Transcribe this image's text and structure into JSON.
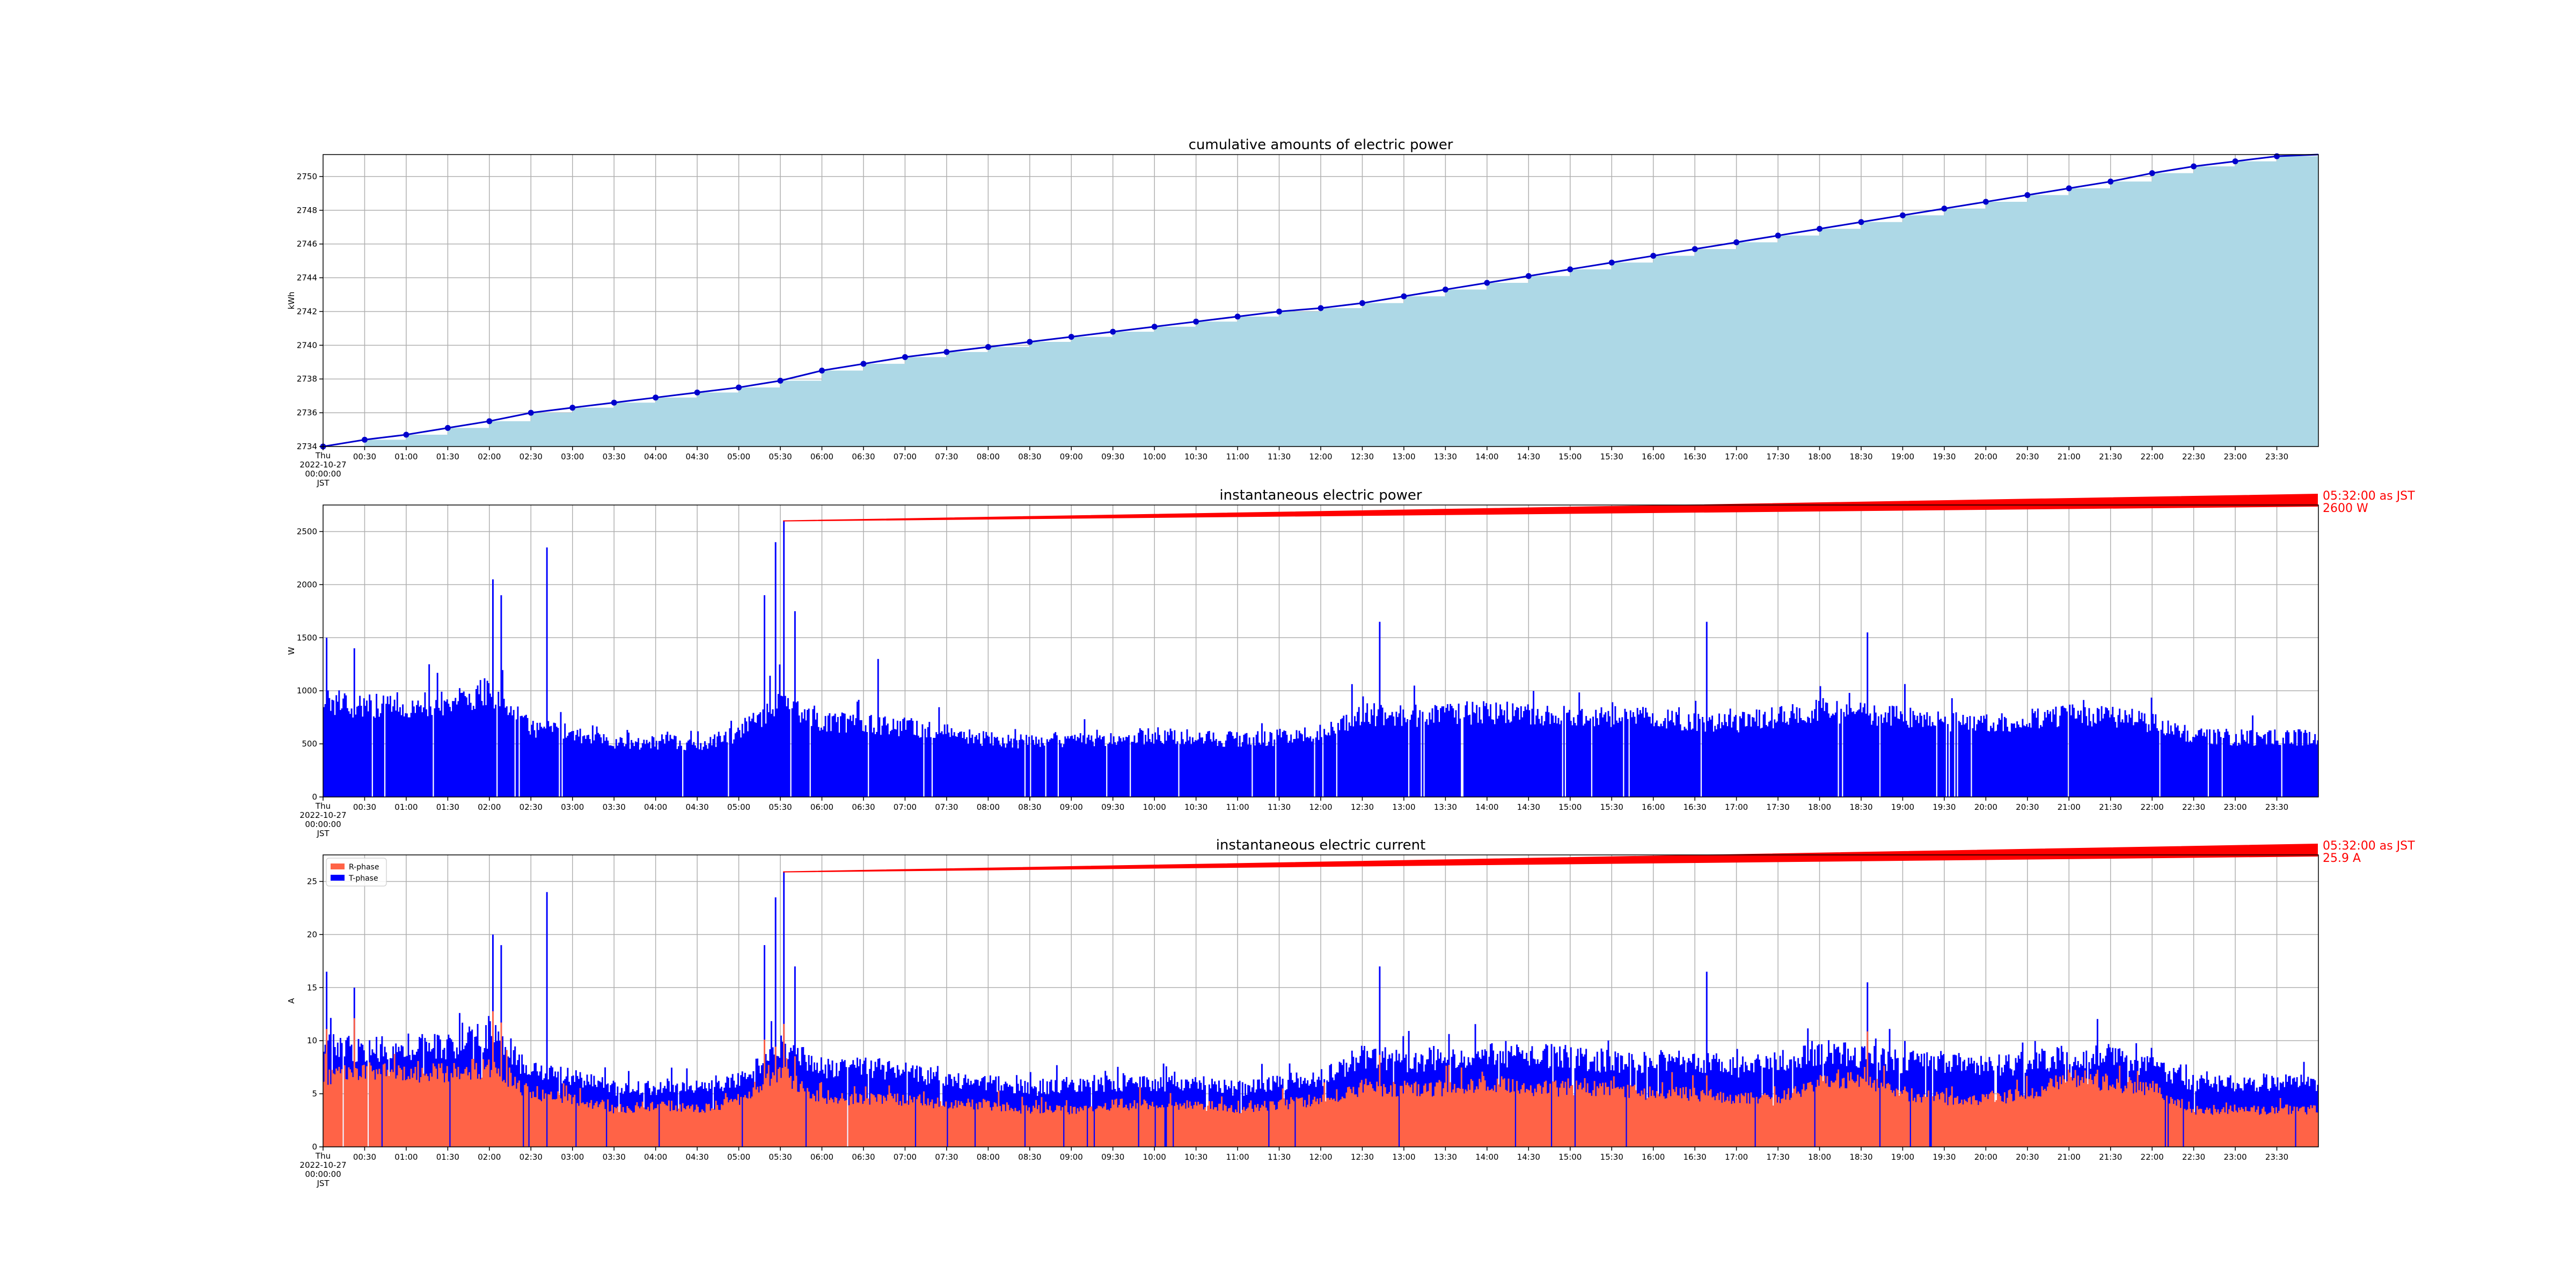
{
  "chart_data": [
    {
      "type": "area",
      "title": "cumulative amounts of electric power",
      "ylabel": "kWh",
      "xlabel": "",
      "ylim": [
        2734,
        2751.3
      ],
      "yticks": [
        2734,
        2736,
        2738,
        2740,
        2742,
        2744,
        2746,
        2748,
        2750
      ],
      "grid": true,
      "x_start_label": [
        "Thu",
        "2022-10-27",
        "00:00:00",
        "JST"
      ],
      "x_tick_labels": [
        "00:30",
        "01:00",
        "01:30",
        "02:00",
        "02:30",
        "03:00",
        "03:30",
        "04:00",
        "04:30",
        "05:00",
        "05:30",
        "06:00",
        "06:30",
        "07:00",
        "07:30",
        "08:00",
        "08:30",
        "09:00",
        "09:30",
        "10:00",
        "10:30",
        "11:00",
        "11:30",
        "12:00",
        "12:30",
        "13:00",
        "13:30",
        "14:00",
        "14:30",
        "15:00",
        "15:30",
        "16:00",
        "16:30",
        "17:00",
        "17:30",
        "18:00",
        "18:30",
        "19:00",
        "19:30",
        "20:00",
        "20:30",
        "21:00",
        "21:30",
        "22:00",
        "22:30",
        "23:00",
        "23:30"
      ],
      "series": [
        {
          "x": [
            "00:00",
            "00:30",
            "01:00",
            "01:30",
            "02:00",
            "02:30",
            "03:00",
            "03:30",
            "04:00",
            "04:30",
            "05:00",
            "05:30",
            "06:00",
            "06:30",
            "07:00",
            "07:30",
            "08:00",
            "08:30",
            "09:00",
            "09:30",
            "10:00",
            "10:30",
            "11:00",
            "11:30",
            "12:00",
            "12:30",
            "13:00",
            "13:30",
            "14:00",
            "14:30",
            "15:00",
            "15:30",
            "16:00",
            "16:30",
            "17:00",
            "17:30",
            "18:00",
            "18:30",
            "19:00",
            "19:30",
            "20:00",
            "20:30",
            "21:00",
            "21:30",
            "22:00",
            "22:30",
            "23:00",
            "23:30"
          ],
          "values": [
            2734.0,
            2734.4,
            2734.7,
            2735.1,
            2735.5,
            2736.0,
            2736.3,
            2736.6,
            2736.9,
            2737.2,
            2737.5,
            2737.9,
            2738.5,
            2738.9,
            2739.3,
            2739.6,
            2739.9,
            2740.2,
            2740.5,
            2740.8,
            2741.1,
            2741.4,
            2741.7,
            2742.0,
            2742.2,
            2742.5,
            2742.9,
            2743.3,
            2743.7,
            2744.1,
            2744.5,
            2744.9,
            2745.3,
            2745.7,
            2746.1,
            2746.5,
            2746.9,
            2747.3,
            2747.7,
            2748.1,
            2748.5,
            2748.9,
            2749.3,
            2749.7,
            2750.2,
            2750.6,
            2750.9,
            2751.2
          ],
          "line_color": "#0000cc",
          "fill_color": "#add8e6"
        }
      ]
    },
    {
      "type": "bar",
      "title": "instantaneous electric power",
      "ylabel": "W",
      "xlabel": "",
      "ylim": [
        0,
        2750
      ],
      "yticks": [
        0,
        500,
        1000,
        1500,
        2000,
        2500
      ],
      "grid": true,
      "x_start_label": [
        "Thu",
        "2022-10-27",
        "00:00:00",
        "JST"
      ],
      "x_tick_labels": [
        "00:30",
        "01:00",
        "01:30",
        "02:00",
        "02:30",
        "03:00",
        "03:30",
        "04:00",
        "04:30",
        "05:00",
        "05:30",
        "06:00",
        "06:30",
        "07:00",
        "07:30",
        "08:00",
        "08:30",
        "09:00",
        "09:30",
        "10:00",
        "10:30",
        "11:00",
        "11:30",
        "12:00",
        "12:30",
        "13:00",
        "13:30",
        "14:00",
        "14:30",
        "15:00",
        "15:30",
        "16:00",
        "16:30",
        "17:00",
        "17:30",
        "18:00",
        "18:30",
        "19:00",
        "19:30",
        "20:00",
        "20:30",
        "21:00",
        "21:30",
        "22:00",
        "22:30",
        "23:00",
        "23:30"
      ],
      "series": [
        {
          "color": "#0000ff",
          "x": [
            "00:00",
            "00:30",
            "01:00",
            "01:30",
            "02:00",
            "02:30",
            "03:00",
            "03:30",
            "04:00",
            "04:30",
            "05:00",
            "05:30",
            "06:00",
            "06:30",
            "07:00",
            "07:30",
            "08:00",
            "08:30",
            "09:00",
            "09:30",
            "10:00",
            "10:30",
            "11:00",
            "11:30",
            "12:00",
            "12:30",
            "13:00",
            "13:30",
            "14:00",
            "14:30",
            "15:00",
            "15:30",
            "16:00",
            "16:30",
            "17:00",
            "17:30",
            "18:00",
            "18:30",
            "19:00",
            "19:30",
            "20:00",
            "20:30",
            "21:00",
            "21:30",
            "22:00",
            "22:30",
            "23:00",
            "23:30"
          ],
          "values": [
            900,
            850,
            870,
            880,
            1000,
            650,
            600,
            500,
            520,
            500,
            600,
            900,
            700,
            700,
            650,
            600,
            550,
            520,
            550,
            560,
            580,
            560,
            540,
            560,
            600,
            780,
            760,
            780,
            800,
            780,
            760,
            760,
            740,
            720,
            700,
            750,
            820,
            780,
            750,
            720,
            700,
            720,
            780,
            760,
            700,
            580,
            560,
            560
          ]
        }
      ],
      "peaks": [
        {
          "x": "00:02",
          "value": 1500
        },
        {
          "x": "00:22",
          "value": 1400
        },
        {
          "x": "01:16",
          "value": 1250
        },
        {
          "x": "01:51",
          "value": 1050
        },
        {
          "x": "02:02",
          "value": 2050
        },
        {
          "x": "02:08",
          "value": 1900
        },
        {
          "x": "02:41",
          "value": 2350
        },
        {
          "x": "05:18",
          "value": 1900
        },
        {
          "x": "05:26",
          "value": 2400
        },
        {
          "x": "05:32",
          "value": 2600
        },
        {
          "x": "05:40",
          "value": 1750
        },
        {
          "x": "06:40",
          "value": 1300
        },
        {
          "x": "12:42",
          "value": 1650
        },
        {
          "x": "16:38",
          "value": 1650
        },
        {
          "x": "18:34",
          "value": 1550
        }
      ],
      "annotation": {
        "text": [
          "05:32:00 as JST",
          "2600 W"
        ],
        "x": "05:32",
        "value": 2600
      }
    },
    {
      "type": "bar",
      "title": "instantaneous electric current",
      "ylabel": "A",
      "xlabel": "",
      "ylim": [
        0,
        27.5
      ],
      "yticks": [
        0,
        5,
        10,
        15,
        20,
        25
      ],
      "grid": true,
      "legend": "top-left",
      "x_start_label": [
        "Thu",
        "2022-10-27",
        "00:00:00",
        "JST"
      ],
      "x_tick_labels": [
        "00:30",
        "01:00",
        "01:30",
        "02:00",
        "02:30",
        "03:00",
        "03:30",
        "04:00",
        "04:30",
        "05:00",
        "05:30",
        "06:00",
        "06:30",
        "07:00",
        "07:30",
        "08:00",
        "08:30",
        "09:00",
        "09:30",
        "10:00",
        "10:30",
        "11:00",
        "11:30",
        "12:00",
        "12:30",
        "13:00",
        "13:30",
        "14:00",
        "14:30",
        "15:00",
        "15:30",
        "16:00",
        "16:30",
        "17:00",
        "17:30",
        "18:00",
        "18:30",
        "19:00",
        "19:30",
        "20:00",
        "20:30",
        "21:00",
        "21:30",
        "22:00",
        "22:30",
        "23:00",
        "23:30"
      ],
      "series": [
        {
          "name": "R-phase",
          "color": "#ff6347",
          "x": [
            "00:00",
            "00:30",
            "01:00",
            "01:30",
            "02:00",
            "02:30",
            "03:00",
            "03:30",
            "04:00",
            "04:30",
            "05:00",
            "05:30",
            "06:00",
            "06:30",
            "07:00",
            "07:30",
            "08:00",
            "08:30",
            "09:00",
            "09:30",
            "10:00",
            "10:30",
            "11:00",
            "11:30",
            "12:00",
            "12:30",
            "13:00",
            "13:30",
            "14:00",
            "14:30",
            "15:00",
            "15:30",
            "16:00",
            "16:30",
            "17:00",
            "17:30",
            "18:00",
            "18:30",
            "19:00",
            "19:30",
            "20:00",
            "20:30",
            "21:00",
            "21:30",
            "22:00",
            "22:30",
            "23:00",
            "23:30"
          ],
          "values": [
            6.5,
            7,
            7,
            7,
            7.5,
            5,
            4.5,
            3.5,
            4,
            3.5,
            4.5,
            7,
            4.5,
            4.5,
            4.5,
            4,
            4,
            3.5,
            3.5,
            4,
            4,
            4,
            3.5,
            4,
            4.5,
            5.5,
            5.5,
            5.5,
            6,
            5.5,
            5.5,
            5.5,
            5,
            5,
            4.5,
            4.5,
            6,
            6.5,
            5,
            4.5,
            4.5,
            5,
            6.5,
            6,
            5.5,
            3.5,
            3.5,
            3.5
          ]
        },
        {
          "name": "T-phase",
          "color": "#0000ff",
          "x": [
            "00:00",
            "00:30",
            "01:00",
            "01:30",
            "02:00",
            "02:30",
            "03:00",
            "03:30",
            "04:00",
            "04:30",
            "05:00",
            "05:30",
            "06:00",
            "06:30",
            "07:00",
            "07:30",
            "08:00",
            "08:30",
            "09:00",
            "09:30",
            "10:00",
            "10:30",
            "11:00",
            "11:30",
            "12:00",
            "12:30",
            "13:00",
            "13:30",
            "14:00",
            "14:30",
            "15:00",
            "15:30",
            "16:00",
            "16:30",
            "17:00",
            "17:30",
            "18:00",
            "18:30",
            "19:00",
            "19:30",
            "20:00",
            "20:30",
            "21:00",
            "21:30",
            "22:00",
            "22:30",
            "23:00",
            "23:30"
          ],
          "values": [
            9.5,
            9,
            9.5,
            9.5,
            10.5,
            7,
            6.5,
            5.5,
            5.5,
            5.5,
            6.5,
            9.5,
            7.5,
            7.5,
            7,
            6.5,
            6,
            5.5,
            6,
            6,
            6,
            6,
            5.5,
            6,
            6.5,
            8.5,
            8,
            8.5,
            8.5,
            8.5,
            8.5,
            8,
            8,
            8,
            7.5,
            8,
            9,
            8.5,
            8,
            8,
            7.5,
            8,
            8.5,
            8.5,
            7.5,
            6,
            6,
            6
          ]
        }
      ],
      "peaks": [
        {
          "x": "00:02",
          "value": 16.5
        },
        {
          "x": "00:22",
          "value": 15
        },
        {
          "x": "02:02",
          "value": 20
        },
        {
          "x": "02:08",
          "value": 19
        },
        {
          "x": "02:41",
          "value": 24
        },
        {
          "x": "05:18",
          "value": 19
        },
        {
          "x": "05:26",
          "value": 23.5
        },
        {
          "x": "05:32",
          "value": 25.9
        },
        {
          "x": "05:40",
          "value": 17
        },
        {
          "x": "12:42",
          "value": 17
        },
        {
          "x": "16:38",
          "value": 16.5
        },
        {
          "x": "18:34",
          "value": 15.5
        }
      ],
      "annotation": {
        "text": [
          "05:32:00 as JST",
          "25.9 A"
        ],
        "x": "05:32",
        "value": 25.9
      }
    }
  ]
}
